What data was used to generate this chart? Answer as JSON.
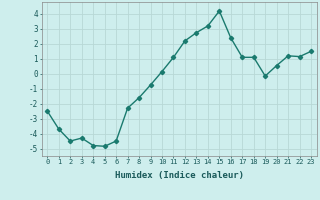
{
  "x": [
    0,
    1,
    2,
    3,
    4,
    5,
    6,
    7,
    8,
    9,
    10,
    11,
    12,
    13,
    14,
    15,
    16,
    17,
    18,
    19,
    20,
    21,
    22,
    23
  ],
  "y": [
    -2.5,
    -3.7,
    -4.5,
    -4.3,
    -4.8,
    -4.85,
    -4.5,
    -2.3,
    -1.6,
    -0.75,
    0.15,
    1.1,
    2.2,
    2.75,
    3.2,
    4.2,
    2.4,
    1.1,
    1.1,
    -0.15,
    0.55,
    1.2,
    1.15,
    1.5
  ],
  "xlabel": "Humidex (Indice chaleur)",
  "xlim": [
    -0.5,
    23.5
  ],
  "ylim": [
    -5.5,
    4.8
  ],
  "yticks": [
    -5,
    -4,
    -3,
    -2,
    -1,
    0,
    1,
    2,
    3,
    4
  ],
  "xticks": [
    0,
    1,
    2,
    3,
    4,
    5,
    6,
    7,
    8,
    9,
    10,
    11,
    12,
    13,
    14,
    15,
    16,
    17,
    18,
    19,
    20,
    21,
    22,
    23
  ],
  "line_color": "#1a7a6e",
  "marker": "D",
  "marker_size": 2.2,
  "bg_color": "#ceeeed",
  "grid_color": "#b8d8d6",
  "line_width": 1.0
}
